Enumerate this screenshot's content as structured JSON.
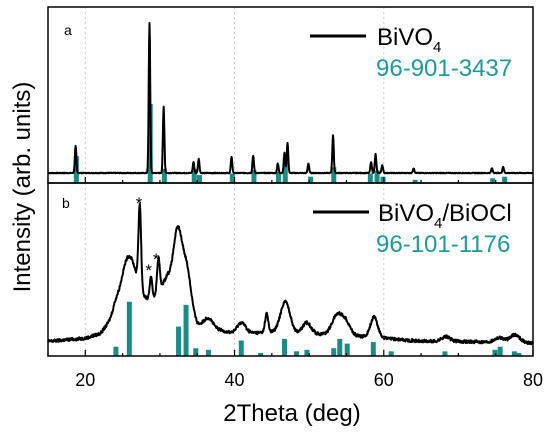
{
  "colors": {
    "pattern": "#1a8c86",
    "pattern_text": "#1f9a94",
    "grid": "#c9c9c9",
    "ink": "#000000"
  },
  "chart_data": {
    "type": "line",
    "xlabel": "2Theta (deg)",
    "ylabel": "Intensity (arb. units)",
    "xlim": [
      15,
      80
    ],
    "x_ticks": [
      20,
      40,
      60,
      80
    ],
    "grid": "vertical dotted lines",
    "panels": [
      {
        "panel_label": "a",
        "ylim": [
          0,
          1.0
        ],
        "legend_placement": "top-right",
        "legend": {
          "series": "BiVO",
          "series_sub": "4",
          "reference": "96-901-3437"
        },
        "measured_peaks": [
          [
            18.7,
            0.17
          ],
          [
            28.6,
            0.95
          ],
          [
            30.5,
            0.42
          ],
          [
            34.5,
            0.07
          ],
          [
            35.2,
            0.09
          ],
          [
            39.6,
            0.1
          ],
          [
            42.5,
            0.11
          ],
          [
            45.8,
            0.06
          ],
          [
            46.7,
            0.13
          ],
          [
            47.1,
            0.19
          ],
          [
            49.9,
            0.06
          ],
          [
            53.2,
            0.24
          ],
          [
            58.3,
            0.07
          ],
          [
            58.9,
            0.12
          ],
          [
            59.8,
            0.05
          ],
          [
            64.0,
            0.03
          ],
          [
            74.5,
            0.03
          ],
          [
            76.0,
            0.04
          ]
        ],
        "reference_sticks": [
          [
            18.8,
            0.17
          ],
          [
            28.7,
            0.5
          ],
          [
            30.6,
            0.09
          ],
          [
            34.6,
            0.09
          ],
          [
            35.3,
            0.05
          ],
          [
            39.7,
            0.06
          ],
          [
            42.6,
            0.08
          ],
          [
            45.9,
            0.07
          ],
          [
            46.8,
            0.16
          ],
          [
            50.2,
            0.04
          ],
          [
            53.3,
            0.1
          ],
          [
            58.2,
            0.06
          ],
          [
            59.1,
            0.08
          ],
          [
            59.9,
            0.04
          ],
          [
            64.2,
            0.02
          ],
          [
            74.6,
            0.03
          ],
          [
            76.2,
            0.04
          ]
        ]
      },
      {
        "panel_label": "b",
        "ylim": [
          0,
          1.0
        ],
        "legend_placement": "top-right",
        "legend": {
          "series": "BiVO",
          "series_sub": "4",
          "series_suffix": "/BiOCl",
          "reference": "96-101-1176"
        },
        "annotations": [
          {
            "text": "*",
            "x": 27.2,
            "y": 0.96
          },
          {
            "text": "*",
            "x": 28.5,
            "y": 0.53
          },
          {
            "text": "*",
            "x": 29.5,
            "y": 0.6
          }
        ],
        "measured_baseline": [
          [
            15,
            0.03
          ],
          [
            20,
            0.05
          ],
          [
            22,
            0.08
          ],
          [
            24,
            0.2
          ],
          [
            27,
            0.28
          ],
          [
            29,
            0.3
          ],
          [
            31,
            0.45
          ],
          [
            35,
            0.14
          ],
          [
            40,
            0.08
          ],
          [
            45,
            0.09
          ],
          [
            50,
            0.08
          ],
          [
            55,
            0.07
          ],
          [
            60,
            0.05
          ],
          [
            65,
            0.03
          ],
          [
            70,
            0.03
          ],
          [
            80,
            0.02
          ]
        ],
        "measured_peaks": [
          [
            24.0,
            0.03,
            0.5
          ],
          [
            25.8,
            0.33,
            1.4
          ],
          [
            27.3,
            0.53,
            0.25
          ],
          [
            28.8,
            0.14,
            0.25
          ],
          [
            29.8,
            0.21,
            0.25
          ],
          [
            32.4,
            0.4,
            0.8
          ],
          [
            33.6,
            0.25,
            0.8
          ],
          [
            36.5,
            0.06,
            0.8
          ],
          [
            40.9,
            0.07,
            0.8
          ],
          [
            44.3,
            0.12,
            0.3
          ],
          [
            46.8,
            0.2,
            0.9
          ],
          [
            49.7,
            0.07,
            0.8
          ],
          [
            53.8,
            0.13,
            1.0
          ],
          [
            55.0,
            0.07,
            0.8
          ],
          [
            58.7,
            0.13,
            0.7
          ],
          [
            68.3,
            0.03,
            0.8
          ],
          [
            75.5,
            0.03,
            0.9
          ],
          [
            77.6,
            0.05,
            0.9
          ]
        ],
        "reference_sticks": [
          [
            24.1,
            0.06
          ],
          [
            25.9,
            0.35
          ],
          [
            32.5,
            0.19
          ],
          [
            33.5,
            0.33
          ],
          [
            34.8,
            0.05
          ],
          [
            36.5,
            0.04
          ],
          [
            40.9,
            0.1
          ],
          [
            43.5,
            0.02
          ],
          [
            46.7,
            0.11
          ],
          [
            48.3,
            0.03
          ],
          [
            49.7,
            0.04
          ],
          [
            53.3,
            0.05
          ],
          [
            54.1,
            0.11
          ],
          [
            55.1,
            0.08
          ],
          [
            58.6,
            0.09
          ],
          [
            61.0,
            0.03
          ],
          [
            68.2,
            0.03
          ],
          [
            74.9,
            0.04
          ],
          [
            75.6,
            0.06
          ],
          [
            77.5,
            0.03
          ],
          [
            78.1,
            0.02
          ]
        ]
      }
    ]
  }
}
